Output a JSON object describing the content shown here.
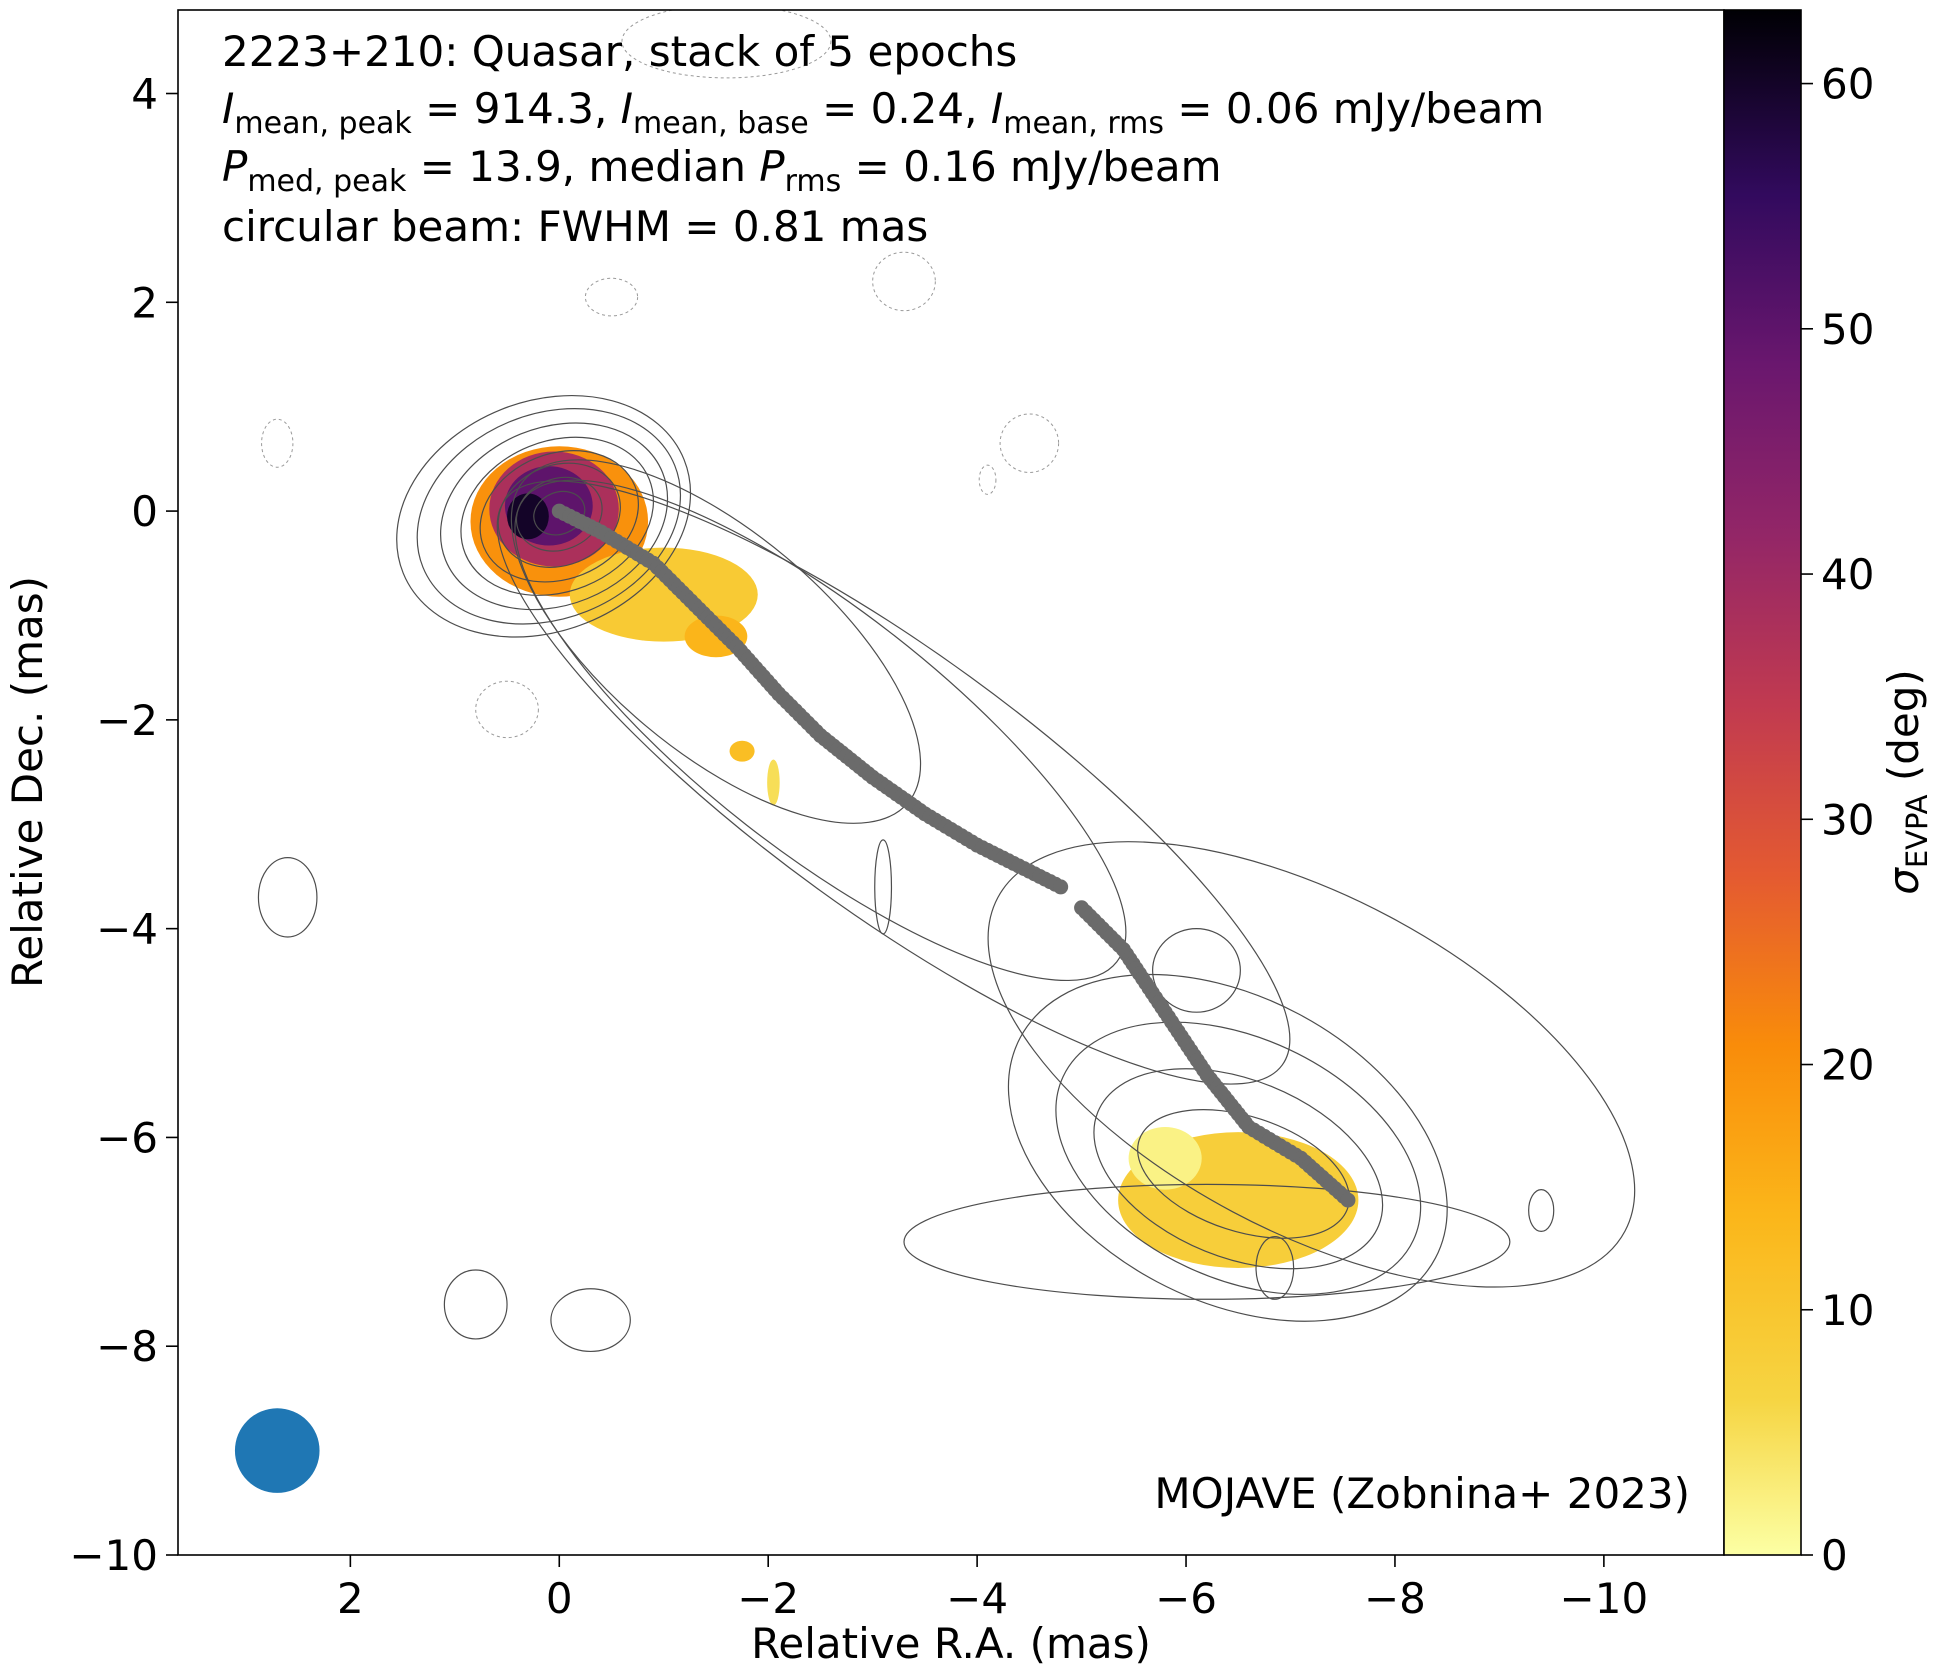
{
  "chart_data": {
    "type": "heatmap",
    "title_lines": [
      "2223+210: Quasar, stack of 5 epochs",
      "I_mean,peak = 914.3, I_mean,base = 0.24, I_mean,rms = 0.06 mJy/beam",
      "P_med,peak = 13.9, median P_rms = 0.16 mJy/beam",
      "circular beam: FWHM = 0.81 mas"
    ],
    "title_parts": {
      "line2": [
        {
          "t": "I",
          "italic": true
        },
        {
          "t": "mean, peak",
          "sub": true
        },
        {
          "t": " = 914.3, "
        },
        {
          "t": "I",
          "italic": true
        },
        {
          "t": "mean, base",
          "sub": true
        },
        {
          "t": " = 0.24, "
        },
        {
          "t": "I",
          "italic": true
        },
        {
          "t": "mean, rms",
          "sub": true
        },
        {
          "t": " = 0.06 mJy/beam"
        }
      ],
      "line3": [
        {
          "t": "P",
          "italic": true
        },
        {
          "t": "med, peak",
          "sub": true
        },
        {
          "t": " = 13.9, median "
        },
        {
          "t": "P",
          "italic": true
        },
        {
          "t": "rms",
          "sub": true
        },
        {
          "t": " = 0.16 mJy/beam"
        }
      ]
    },
    "credit": "MOJAVE (Zobnina+ 2023)",
    "xlabel": "Relative R.A. (mas)",
    "ylabel": "Relative Dec. (mas)",
    "xlim": [
      3.65,
      -11.15
    ],
    "ylim": [
      -10.0,
      4.8
    ],
    "xticks": [
      2,
      0,
      -2,
      -4,
      -6,
      -8,
      -10
    ],
    "xtick_labels": [
      "2",
      "0",
      "−2",
      "−4",
      "−6",
      "−8",
      "−10"
    ],
    "yticks": [
      4,
      2,
      0,
      -2,
      -4,
      -6,
      -8,
      -10
    ],
    "ytick_labels": [
      "4",
      "2",
      "0",
      "−2",
      "−4",
      "−6",
      "−8",
      "−10"
    ],
    "colorbar": {
      "label_symbol": "σ",
      "label_sub": "EVPA",
      "label_unit": " (deg)",
      "range": [
        0,
        63
      ],
      "ticks": [
        0,
        10,
        20,
        30,
        40,
        50,
        60
      ],
      "tick_labels": [
        "0",
        "10",
        "20",
        "30",
        "40",
        "50",
        "60"
      ],
      "colormap": "inferno_r"
    },
    "beam": {
      "ra": 2.7,
      "dec": -9.0,
      "fwhm_mas": 0.81,
      "color": "#1f77b4"
    },
    "ridgeline": {
      "color": "#6b6b6b",
      "segments": [
        [
          [
            0.0,
            0.0
          ],
          [
            -0.4,
            -0.2
          ],
          [
            -0.9,
            -0.5
          ],
          [
            -1.3,
            -0.9
          ],
          [
            -1.7,
            -1.3
          ],
          [
            -2.1,
            -1.75
          ],
          [
            -2.5,
            -2.15
          ],
          [
            -3.0,
            -2.55
          ],
          [
            -3.5,
            -2.9
          ],
          [
            -4.0,
            -3.2
          ],
          [
            -4.5,
            -3.45
          ],
          [
            -4.8,
            -3.6
          ]
        ],
        [
          [
            -5.0,
            -3.8
          ],
          [
            -5.4,
            -4.2
          ],
          [
            -5.8,
            -4.8
          ],
          [
            -6.2,
            -5.4
          ],
          [
            -6.6,
            -5.9
          ],
          [
            -7.1,
            -6.2
          ],
          [
            -7.55,
            -6.6
          ]
        ]
      ]
    },
    "sigma_regions": [
      {
        "name": "core-outer",
        "center": [
          0.0,
          -0.1
        ],
        "radii": [
          0.85,
          0.72
        ],
        "sigma": 20
      },
      {
        "name": "core-mid",
        "center": [
          0.05,
          0.02
        ],
        "radii": [
          0.62,
          0.55
        ],
        "sigma": 38
      },
      {
        "name": "core-inner",
        "center": [
          0.1,
          0.05
        ],
        "radii": [
          0.42,
          0.38
        ],
        "sigma": 50
      },
      {
        "name": "core-peak",
        "center": [
          0.3,
          -0.05
        ],
        "radii": [
          0.2,
          0.22
        ],
        "sigma": 60
      },
      {
        "name": "inner-jet",
        "center": [
          -1.0,
          -0.8
        ],
        "radii": [
          0.9,
          0.45
        ],
        "sigma": 9
      },
      {
        "name": "inner-jet-tip",
        "center": [
          -1.5,
          -1.2
        ],
        "radii": [
          0.3,
          0.2
        ],
        "sigma": 14
      },
      {
        "name": "outer-lobe",
        "center": [
          -6.5,
          -6.6
        ],
        "radii": [
          1.15,
          0.65
        ],
        "sigma": 8
      },
      {
        "name": "outer-lobe-hotspot",
        "center": [
          -5.8,
          -6.2
        ],
        "radii": [
          0.35,
          0.3
        ],
        "sigma": 2
      },
      {
        "name": "knot-a",
        "center": [
          -1.75,
          -2.3
        ],
        "radii": [
          0.12,
          0.1
        ],
        "sigma": 12
      },
      {
        "name": "knot-b",
        "center": [
          -2.05,
          -2.6
        ],
        "radii": [
          0.06,
          0.22
        ],
        "sigma": 5
      }
    ],
    "contours": [
      {
        "center": [
          0.15,
          -0.05
        ],
        "radii": [
          1.45,
          1.1
        ],
        "angle": -22,
        "dashed": false
      },
      {
        "center": [
          0.1,
          -0.05
        ],
        "radii": [
          1.3,
          0.98
        ],
        "angle": -22,
        "dashed": false
      },
      {
        "center": [
          0.05,
          -0.05
        ],
        "radii": [
          1.12,
          0.85
        ],
        "angle": -22,
        "dashed": false
      },
      {
        "center": [
          0.02,
          -0.05
        ],
        "radii": [
          0.95,
          0.72
        ],
        "angle": -22,
        "dashed": false
      },
      {
        "center": [
          0.0,
          -0.05
        ],
        "radii": [
          0.78,
          0.6
        ],
        "angle": -22,
        "dashed": false
      },
      {
        "center": [
          0.0,
          -0.04
        ],
        "radii": [
          0.6,
          0.48
        ],
        "angle": -22,
        "dashed": false
      },
      {
        "center": [
          0.0,
          -0.03
        ],
        "radii": [
          0.42,
          0.34
        ],
        "angle": -22,
        "dashed": false
      },
      {
        "center": [
          0.0,
          -0.02
        ],
        "radii": [
          0.25,
          0.2
        ],
        "angle": -22,
        "dashed": false
      },
      {
        "center": [
          -1.5,
          -1.25
        ],
        "radii": [
          2.4,
          1.05
        ],
        "angle": 40,
        "dashed": false
      },
      {
        "center": [
          -2.5,
          -2.1
        ],
        "radii": [
          3.6,
          1.15
        ],
        "angle": 38,
        "dashed": false
      },
      {
        "center": [
          -3.2,
          -2.6
        ],
        "radii": [
          4.6,
          1.25
        ],
        "angle": 36,
        "dashed": false
      },
      {
        "center": [
          -6.4,
          -6.1
        ],
        "radii": [
          2.25,
          1.45
        ],
        "angle": 28,
        "dashed": false
      },
      {
        "center": [
          -6.5,
          -6.2
        ],
        "radii": [
          1.85,
          1.15
        ],
        "angle": 25,
        "dashed": false
      },
      {
        "center": [
          -6.5,
          -6.3
        ],
        "radii": [
          1.45,
          0.85
        ],
        "angle": 22,
        "dashed": false
      },
      {
        "center": [
          -6.55,
          -6.35
        ],
        "radii": [
          1.05,
          0.55
        ],
        "angle": 18,
        "dashed": false
      },
      {
        "center": [
          -6.1,
          -4.4
        ],
        "radii": [
          0.42,
          0.4
        ],
        "angle": 0,
        "dashed": false
      },
      {
        "center": [
          -7.2,
          -5.3
        ],
        "radii": [
          3.4,
          1.6
        ],
        "angle": 28,
        "dashed": false
      },
      {
        "center": [
          -6.2,
          -7.0
        ],
        "radii": [
          2.9,
          0.55
        ],
        "angle": 0,
        "dashed": false
      },
      {
        "center": [
          -3.1,
          -3.6
        ],
        "radii": [
          0.08,
          0.45
        ],
        "angle": 0,
        "dashed": false
      },
      {
        "center": [
          2.6,
          -3.7
        ],
        "radii": [
          0.28,
          0.38
        ],
        "angle": 0,
        "dashed": false
      },
      {
        "center": [
          0.8,
          -7.6
        ],
        "radii": [
          0.3,
          0.33
        ],
        "angle": 0,
        "dashed": false
      },
      {
        "center": [
          -0.3,
          -7.75
        ],
        "radii": [
          0.38,
          0.3
        ],
        "angle": 0,
        "dashed": false
      },
      {
        "center": [
          -6.85,
          -7.25
        ],
        "radii": [
          0.18,
          0.3
        ],
        "angle": 0,
        "dashed": false
      },
      {
        "center": [
          -9.4,
          -6.7
        ],
        "radii": [
          0.12,
          0.2
        ],
        "angle": 0,
        "dashed": false
      },
      {
        "center": [
          -0.5,
          2.05
        ],
        "radii": [
          0.25,
          0.18
        ],
        "angle": 0,
        "dashed": true
      },
      {
        "center": [
          -3.3,
          2.2
        ],
        "radii": [
          0.3,
          0.28
        ],
        "angle": 0,
        "dashed": true
      },
      {
        "center": [
          -4.5,
          0.65
        ],
        "radii": [
          0.28,
          0.28
        ],
        "angle": 0,
        "dashed": true
      },
      {
        "center": [
          -4.1,
          0.3
        ],
        "radii": [
          0.08,
          0.14
        ],
        "angle": 0,
        "dashed": true
      },
      {
        "center": [
          2.7,
          0.65
        ],
        "radii": [
          0.15,
          0.23
        ],
        "angle": 0,
        "dashed": true
      },
      {
        "center": [
          0.5,
          -1.9
        ],
        "radii": [
          0.3,
          0.27
        ],
        "angle": 0,
        "dashed": true
      },
      {
        "center": [
          -1.6,
          4.5
        ],
        "radii": [
          1.0,
          0.35
        ],
        "angle": 0,
        "dashed": true
      }
    ]
  }
}
